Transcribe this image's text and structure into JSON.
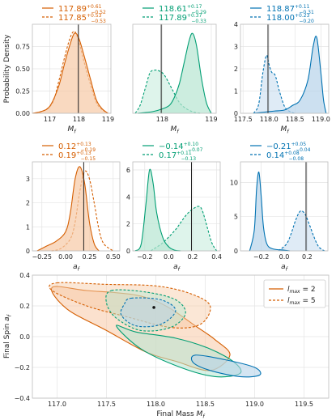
{
  "colors": {
    "orange": "#d55e00",
    "green": "#009e73",
    "blue": "#0072b2",
    "orange_fill": "#f7c9a5",
    "green_fill": "#b6e6d2",
    "blue_fill": "#b7d3ea"
  },
  "chart_data": [
    {
      "id": "mf-l2",
      "type": "area",
      "xlabel": "M_f",
      "ylabel": "Probability Density",
      "xlim": [
        116.4,
        119.1
      ],
      "ylim": [
        0,
        1.0
      ],
      "xticks": [
        "117",
        "118",
        "119"
      ],
      "xtick_values": [
        117,
        118,
        119
      ],
      "yticks": [
        "0.00",
        "0.25",
        "0.50",
        "0.75"
      ],
      "ytick_values": [
        0,
        0.25,
        0.5,
        0.75
      ],
      "true_value": 117.98,
      "color": "orange",
      "legend": [
        {
          "median": "117.89",
          "plus": "+0.61",
          "minus": "−0.52",
          "style": "solid"
        },
        {
          "median": "117.85",
          "plus": "+0.53",
          "minus": "−0.53",
          "style": "dashed"
        }
      ],
      "series": [
        {
          "style": "solid",
          "fill": true,
          "x": [
            116.4,
            116.7,
            117.0,
            117.3,
            117.5,
            117.7,
            117.85,
            118.0,
            118.2,
            118.4,
            118.6,
            118.8,
            119.0
          ],
          "values": [
            0.0,
            0.02,
            0.08,
            0.3,
            0.55,
            0.78,
            0.9,
            0.84,
            0.62,
            0.38,
            0.15,
            0.05,
            0.0
          ]
        },
        {
          "style": "dashed",
          "fill": false,
          "x": [
            116.5,
            116.8,
            117.1,
            117.3,
            117.5,
            117.7,
            117.85,
            118.0,
            118.2,
            118.4,
            118.6,
            118.8,
            119.0
          ],
          "values": [
            0.0,
            0.03,
            0.12,
            0.35,
            0.62,
            0.85,
            0.92,
            0.8,
            0.55,
            0.32,
            0.12,
            0.04,
            0.0
          ]
        }
      ]
    },
    {
      "id": "mf-l3",
      "type": "area",
      "xlabel": "M_f",
      "ylabel": "",
      "xlim": [
        117.4,
        119.1
      ],
      "ylim": [
        0,
        1.65
      ],
      "xticks": [
        "118",
        "119"
      ],
      "xtick_values": [
        118,
        119
      ],
      "yticks": [],
      "ytick_values": [],
      "true_value": 117.98,
      "color": "green",
      "legend": [
        {
          "median": "118.61",
          "plus": "+0.17",
          "minus": "−0.29",
          "style": "solid"
        },
        {
          "median": "117.89",
          "plus": "+0.37",
          "minus": "−0.33",
          "style": "dashed"
        }
      ],
      "series": [
        {
          "style": "solid",
          "fill": true,
          "x": [
            117.5,
            117.8,
            118.0,
            118.15,
            118.25,
            118.35,
            118.45,
            118.55,
            118.62,
            118.7,
            118.8,
            118.9,
            119.0
          ],
          "values": [
            0.0,
            0.03,
            0.08,
            0.15,
            0.3,
            0.55,
            0.95,
            1.35,
            1.48,
            1.25,
            0.65,
            0.2,
            0.0
          ]
        },
        {
          "style": "dashed",
          "fill": true,
          "x": [
            117.45,
            117.55,
            117.65,
            117.75,
            117.85,
            117.95,
            118.05,
            118.2,
            118.35,
            118.5,
            118.65,
            118.8
          ],
          "values": [
            0.0,
            0.15,
            0.45,
            0.75,
            0.8,
            0.78,
            0.7,
            0.45,
            0.2,
            0.08,
            0.02,
            0.0
          ]
        }
      ]
    },
    {
      "id": "mf-l4",
      "type": "area",
      "xlabel": "M_f",
      "ylabel": "",
      "xlim": [
        117.45,
        119.15
      ],
      "ylim": [
        0,
        4.0
      ],
      "xticks": [
        "117.5",
        "118.0",
        "118.5",
        "119.0"
      ],
      "xtick_values": [
        117.5,
        118.0,
        118.5,
        119.0
      ],
      "yticks": [
        "0",
        "1",
        "2",
        "3",
        "4"
      ],
      "ytick_values": [
        0,
        1,
        2,
        3,
        4
      ],
      "true_value": 117.98,
      "color": "blue",
      "legend": [
        {
          "median": "118.87",
          "plus": "+0.11",
          "minus": "−0.31",
          "style": "solid"
        },
        {
          "median": "118.00",
          "plus": "+0.23",
          "minus": "−0.20",
          "style": "dashed"
        }
      ],
      "series": [
        {
          "style": "solid",
          "fill": true,
          "x": [
            117.7,
            117.9,
            118.1,
            118.3,
            118.45,
            118.6,
            118.75,
            118.85,
            118.92,
            119.0,
            119.05,
            119.1
          ],
          "values": [
            0.0,
            0.05,
            0.1,
            0.15,
            0.35,
            0.6,
            1.5,
            3.0,
            3.4,
            1.8,
            0.6,
            0.0
          ]
        },
        {
          "style": "dashed",
          "fill": true,
          "x": [
            117.7,
            117.8,
            117.88,
            117.95,
            118.0,
            118.05,
            118.12,
            118.2,
            118.3,
            118.4,
            118.5
          ],
          "values": [
            0.0,
            0.4,
            1.8,
            2.6,
            2.2,
            1.85,
            1.7,
            1.0,
            0.3,
            0.08,
            0.0
          ]
        }
      ]
    },
    {
      "id": "af-l2",
      "type": "area",
      "xlabel": "a_f",
      "ylabel": "",
      "xlim": [
        -0.35,
        0.57
      ],
      "ylim": [
        0,
        3.7
      ],
      "xticks": [
        "−0.25",
        "0.00",
        "0.25",
        "0.50"
      ],
      "xtick_values": [
        -0.25,
        0.0,
        0.25,
        0.5
      ],
      "yticks": [
        "0",
        "1",
        "2",
        "3"
      ],
      "ytick_values": [
        0,
        1,
        2,
        3
      ],
      "true_value": 0.19,
      "color": "orange",
      "legend": [
        {
          "median": "0.12",
          "plus": "+0.13",
          "minus": "−0.19",
          "style": "solid"
        },
        {
          "median": "0.19",
          "plus": "+0.13",
          "minus": "−0.15",
          "style": "dashed"
        }
      ],
      "series": [
        {
          "style": "solid",
          "fill": true,
          "x": [
            -0.3,
            -0.2,
            -0.1,
            0.0,
            0.05,
            0.1,
            0.15,
            0.2,
            0.25,
            0.3,
            0.35
          ],
          "values": [
            0.0,
            0.2,
            0.4,
            0.8,
            1.6,
            3.0,
            3.5,
            2.8,
            1.2,
            0.3,
            0.0
          ]
        },
        {
          "style": "dashed",
          "fill": false,
          "x": [
            -0.15,
            -0.05,
            0.05,
            0.1,
            0.15,
            0.2,
            0.25,
            0.3,
            0.35,
            0.4,
            0.5
          ],
          "values": [
            0.0,
            0.1,
            0.5,
            1.2,
            2.5,
            3.3,
            3.0,
            2.0,
            0.9,
            0.3,
            0.0
          ]
        }
      ]
    },
    {
      "id": "af-l3",
      "type": "area",
      "xlabel": "a_f",
      "ylabel": "",
      "xlim": [
        -0.3,
        0.43
      ],
      "ylim": [
        0,
        6.6
      ],
      "xticks": [
        "−0.2",
        "0.0",
        "0.2",
        "0.4"
      ],
      "xtick_values": [
        -0.2,
        0.0,
        0.2,
        0.4
      ],
      "yticks": [
        "0",
        "2",
        "4",
        "6"
      ],
      "ytick_values": [
        0,
        2,
        4,
        6
      ],
      "true_value": 0.19,
      "color": "green",
      "legend": [
        {
          "median": "−0.14",
          "plus": "+0.10",
          "minus": "−0.07",
          "style": "solid"
        },
        {
          "median": "0.17",
          "plus": "+0.11",
          "minus": "−0.13",
          "style": "dashed"
        }
      ],
      "series": [
        {
          "style": "solid",
          "fill": true,
          "x": [
            -0.28,
            -0.23,
            -0.19,
            -0.16,
            -0.13,
            -0.1,
            -0.05,
            0.0,
            0.05,
            0.1
          ],
          "values": [
            0.0,
            0.5,
            3.5,
            6.0,
            5.0,
            2.8,
            1.0,
            0.3,
            0.05,
            0.0
          ]
        },
        {
          "style": "dashed",
          "fill": true,
          "x": [
            -0.15,
            -0.05,
            0.05,
            0.1,
            0.15,
            0.2,
            0.25,
            0.28,
            0.32,
            0.36,
            0.4
          ],
          "values": [
            0.0,
            0.6,
            1.5,
            2.1,
            2.7,
            3.1,
            3.3,
            3.0,
            1.8,
            0.6,
            0.0
          ]
        }
      ]
    },
    {
      "id": "af-l4",
      "type": "area",
      "xlabel": "a_f",
      "ylabel": "",
      "xlim": [
        -0.38,
        0.38
      ],
      "ylim": [
        0,
        13.0
      ],
      "xticks": [
        "−0.2",
        "0.0",
        "0.2"
      ],
      "xtick_values": [
        -0.2,
        0.0,
        0.2
      ],
      "yticks": [
        "0",
        "5",
        "10"
      ],
      "ytick_values": [
        0,
        5,
        10
      ],
      "true_value": 0.19,
      "color": "blue",
      "legend": [
        {
          "median": "−0.21",
          "plus": "+0.05",
          "minus": "−0.04",
          "style": "solid"
        },
        {
          "median": "0.14",
          "plus": "+0.08",
          "minus": "−0.08",
          "style": "dashed"
        }
      ],
      "series": [
        {
          "style": "solid",
          "fill": true,
          "x": [
            -0.3,
            -0.26,
            -0.24,
            -0.22,
            -0.2,
            -0.18,
            -0.15,
            -0.1,
            0.0,
            0.05
          ],
          "values": [
            0.0,
            3.0,
            9.0,
            11.5,
            8.0,
            3.5,
            1.0,
            0.3,
            0.1,
            0.0
          ]
        },
        {
          "style": "dashed",
          "fill": true,
          "x": [
            -0.05,
            0.02,
            0.06,
            0.1,
            0.14,
            0.18,
            0.22,
            0.26,
            0.3,
            0.35
          ],
          "values": [
            0.0,
            1.0,
            2.5,
            4.5,
            5.8,
            5.4,
            3.8,
            2.0,
            0.6,
            0.0
          ]
        }
      ]
    },
    {
      "id": "joint",
      "type": "scatter",
      "xlabel": "Final Mass M_f",
      "ylabel": "Final Spin a_f",
      "xlim": [
        116.75,
        119.75
      ],
      "ylim": [
        -0.4,
        0.4
      ],
      "xticks": [
        "117.0",
        "117.5",
        "118.0",
        "118.5",
        "119.0",
        "119.5"
      ],
      "xtick_values": [
        117.0,
        117.5,
        118.0,
        118.5,
        119.0,
        119.5
      ],
      "yticks": [
        "−0.4",
        "−0.2",
        "0.0",
        "0.2",
        "0.4"
      ],
      "ytick_values": [
        -0.4,
        -0.2,
        0.0,
        0.2,
        0.4
      ],
      "true_point": [
        117.98,
        0.19
      ],
      "legend": [
        {
          "label": "l_max = 2",
          "style": "solid"
        },
        {
          "label": "l_max = 5",
          "style": "dashed"
        }
      ],
      "contours": [
        {
          "color": "orange",
          "style": "solid",
          "fill": "orange_fill",
          "fill_opacity": 0.55,
          "points": [
            [
              116.95,
              0.32
            ],
            [
              117.3,
              0.3
            ],
            [
              117.8,
              0.27
            ],
            [
              118.1,
              0.2
            ],
            [
              118.4,
              0.07
            ],
            [
              118.6,
              -0.02
            ],
            [
              118.75,
              -0.12
            ],
            [
              118.55,
              -0.22
            ],
            [
              118.2,
              -0.16
            ],
            [
              117.9,
              -0.1
            ],
            [
              117.5,
              0.04
            ],
            [
              117.1,
              0.18
            ]
          ]
        },
        {
          "color": "orange",
          "style": "dashed",
          "fill": "orange_fill",
          "fill_opacity": 0.45,
          "points": [
            [
              117.0,
              0.35
            ],
            [
              117.5,
              0.34
            ],
            [
              118.0,
              0.33
            ],
            [
              118.35,
              0.28
            ],
            [
              118.55,
              0.2
            ],
            [
              118.45,
              0.08
            ],
            [
              118.15,
              0.06
            ],
            [
              117.7,
              0.13
            ],
            [
              117.3,
              0.2
            ],
            [
              116.95,
              0.3
            ]
          ]
        },
        {
          "color": "green",
          "style": "solid",
          "fill": "green_fill",
          "fill_opacity": 0.55,
          "points": [
            [
              117.6,
              0.07
            ],
            [
              117.8,
              0.03
            ],
            [
              118.2,
              -0.01
            ],
            [
              118.55,
              -0.08
            ],
            [
              118.8,
              -0.17
            ],
            [
              118.85,
              -0.24
            ],
            [
              118.6,
              -0.26
            ],
            [
              118.25,
              -0.2
            ],
            [
              117.85,
              -0.08
            ]
          ]
        },
        {
          "color": "green",
          "style": "dashed",
          "fill": "green_fill",
          "fill_opacity": 0.45,
          "points": [
            [
              117.55,
              0.3
            ],
            [
              117.9,
              0.29
            ],
            [
              118.2,
              0.24
            ],
            [
              118.3,
              0.15
            ],
            [
              118.15,
              0.06
            ],
            [
              117.85,
              0.04
            ],
            [
              117.6,
              0.12
            ],
            [
              117.5,
              0.22
            ]
          ]
        },
        {
          "color": "blue",
          "style": "solid",
          "fill": "blue_fill",
          "fill_opacity": 0.6,
          "points": [
            [
              118.4,
              -0.12
            ],
            [
              118.7,
              -0.15
            ],
            [
              119.0,
              -0.2
            ],
            [
              119.05,
              -0.25
            ],
            [
              118.85,
              -0.26
            ],
            [
              118.55,
              -0.22
            ],
            [
              118.38,
              -0.17
            ]
          ]
        },
        {
          "color": "blue",
          "style": "dashed",
          "fill": "blue_fill",
          "fill_opacity": 0.5,
          "points": [
            [
              117.75,
              0.25
            ],
            [
              118.05,
              0.24
            ],
            [
              118.2,
              0.17
            ],
            [
              118.05,
              0.08
            ],
            [
              117.8,
              0.07
            ],
            [
              117.65,
              0.14
            ],
            [
              117.68,
              0.21
            ]
          ]
        }
      ]
    }
  ]
}
